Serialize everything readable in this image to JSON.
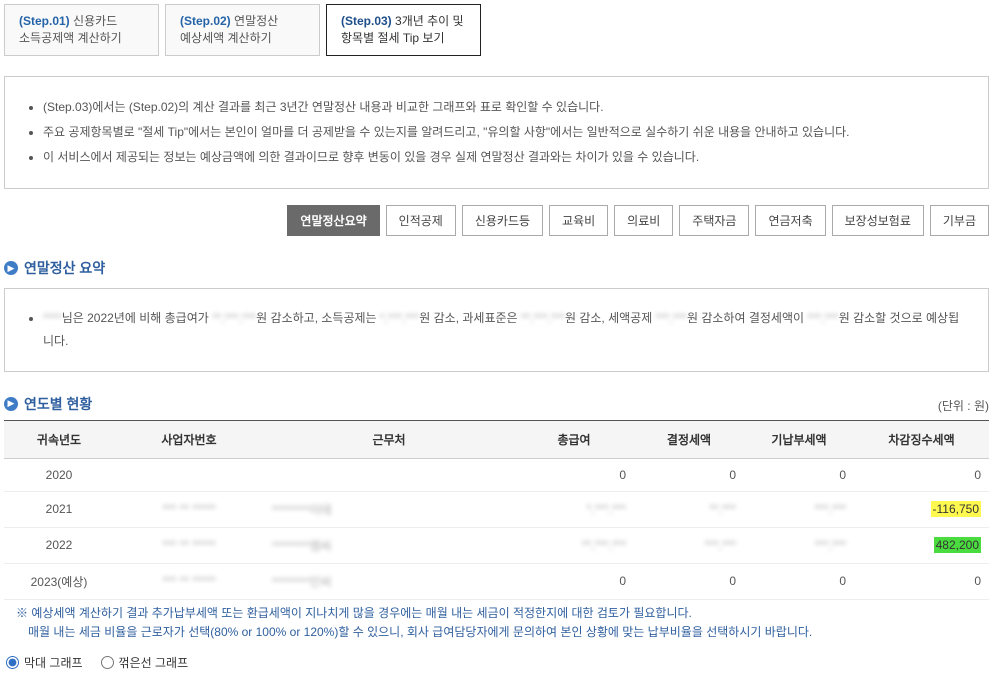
{
  "steps": [
    {
      "no": "(Step.01)",
      "title": "신용카드\n소득공제액 계산하기"
    },
    {
      "no": "(Step.02)",
      "title": "연말정산\n예상세액 계산하기"
    },
    {
      "no": "(Step.03)",
      "title": "3개년 추이 및\n항목별 절세 Tip 보기"
    }
  ],
  "activeStep": 2,
  "infoBullets": [
    "(Step.03)에서는 (Step.02)의 계산 결과를 최근 3년간 연말정산 내용과 비교한 그래프와 표로 확인할 수 있습니다.",
    "주요 공제항목별로 \"절세 Tip\"에서는 본인이 얼마를 더 공제받을 수 있는지를 알려드리고, \"유의할 사항\"에서는 일반적으로 실수하기 쉬운 내용을 안내하고 있습니다.",
    "이 서비스에서 제공되는 정보는 예상금액에 의한 결과이므로 향후 변동이 있을 경우 실제 연말정산 결과와는 차이가 있을 수 있습니다."
  ],
  "categories": [
    "연말정산요약",
    "인적공제",
    "신용카드등",
    "교육비",
    "의료비",
    "주택자금",
    "연금저축",
    "보장성보험료",
    "기부금"
  ],
  "activeCategory": 0,
  "section1Title": "연말정산 요약",
  "summaryBullets": [
    "****님은 2022년에 비해 총급여가 **,***,***원 감소하고, 소득공제는 *,***,***원 감소, 과세표준은 **,***,***원 감소, 세액공제 ***,***원 감소하여 결정세액이 ***,***원 감소할 것으로 예상됩니다."
  ],
  "section2Title": "연도별 현황",
  "unit": "(단위 : 원)",
  "tableHeaders": [
    "귀속년도",
    "사업자번호",
    "근무처",
    "총급여",
    "결정세액",
    "기납부세액",
    "차감징수세액"
  ],
  "tableColWidths": [
    "110px",
    "150px",
    "250px",
    "120px",
    "110px",
    "110px",
    ""
  ],
  "rows": [
    {
      "year": "2020",
      "biz": "",
      "work": "",
      "gross": "0",
      "final": "0",
      "prepaid": "0",
      "diff": "0",
      "hl": ""
    },
    {
      "year": "2021",
      "biz": "*** ** *****",
      "work": "********이테",
      "gross": "*,***,***",
      "final": "**,***",
      "prepaid": "***,***",
      "diff": "-116,750",
      "hl": "yellow"
    },
    {
      "year": "2022",
      "biz": "*** ** *****",
      "work": "********엠씨",
      "gross": "**,***,***",
      "final": "***,***",
      "prepaid": "***,***",
      "diff": "482,200",
      "hl": "green"
    },
    {
      "year": "2023(예상)",
      "biz": "*** ** *****",
      "work": "********인씨",
      "gross": "0",
      "final": "0",
      "prepaid": "0",
      "diff": "0",
      "hl": ""
    }
  ],
  "footnoteLine1": "※ 예상세액 계산하기 결과 추가납부세액 또는 환급세액이 지나치게 많을 경우에는 매월 내는 세금이 적정한지에 대한 검토가 필요합니다.",
  "footnoteLine2": "매월 내는 세금 비율을 근로자가 선택(80% or 100% or 120%)할 수 있으니, 회사 급여담당자에게 문의하여 본인 상황에 맞는 납부비율을 선택하시기 바랍니다.",
  "radios": {
    "bar": "막대 그래프",
    "line": "꺾은선 그래프"
  },
  "colors": {
    "accent": "#2f6fc4",
    "sectionBlue": "#3e7cc5",
    "hlYellow": "#fff94f",
    "hlGreen": "#4adb3e"
  }
}
